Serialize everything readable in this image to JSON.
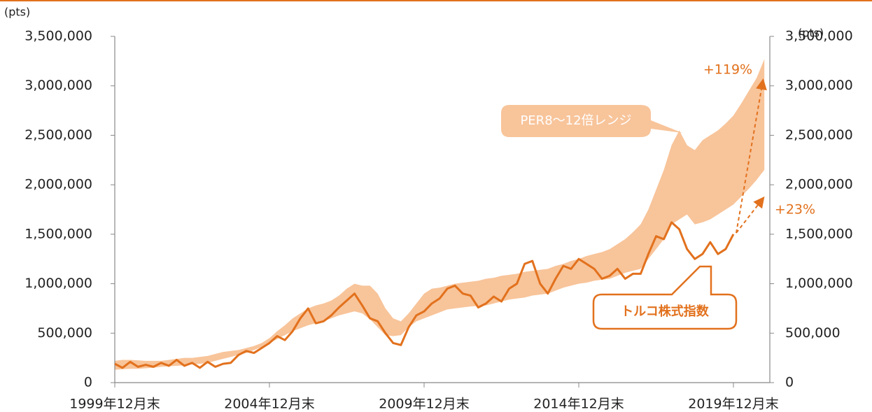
{
  "chart_data": {
    "type": "line",
    "categories": [
      "1999年12月末",
      null,
      null,
      null,
      null,
      null,
      null,
      null,
      null,
      null,
      null,
      null,
      null,
      null,
      null,
      null,
      null,
      null,
      null,
      null,
      "2004年12月末",
      null,
      null,
      null,
      null,
      null,
      null,
      null,
      null,
      null,
      null,
      null,
      null,
      null,
      null,
      null,
      null,
      null,
      null,
      null,
      "2009年12月末",
      null,
      null,
      null,
      null,
      null,
      null,
      null,
      null,
      null,
      null,
      null,
      null,
      null,
      null,
      null,
      null,
      null,
      null,
      null,
      "2014年12月末",
      null,
      null,
      null,
      null,
      null,
      null,
      null,
      null,
      null,
      null,
      null,
      null,
      null,
      null,
      null,
      null,
      null,
      null,
      null,
      "2019年12月末",
      null,
      null,
      null,
      null
    ],
    "series": [
      {
        "name": "PER8～12倍レンジ",
        "color": "#f8c49a",
        "low": [
          130000,
          135000,
          140000,
          140000,
          145000,
          150000,
          160000,
          165000,
          170000,
          175000,
          185000,
          190000,
          200000,
          220000,
          240000,
          260000,
          280000,
          300000,
          330000,
          360000,
          400000,
          440000,
          480000,
          520000,
          550000,
          580000,
          600000,
          620000,
          650000,
          680000,
          700000,
          720000,
          700000,
          640000,
          560000,
          480000,
          470000,
          480000,
          560000,
          620000,
          650000,
          680000,
          710000,
          740000,
          750000,
          760000,
          770000,
          775000,
          780000,
          800000,
          820000,
          840000,
          850000,
          860000,
          880000,
          890000,
          900000,
          930000,
          960000,
          980000,
          1000000,
          1010000,
          1030000,
          1040000,
          1050000,
          1080000,
          1110000,
          1130000,
          1150000,
          1250000,
          1350000,
          1450000,
          1600000,
          1650000,
          1700000,
          1600000,
          1620000,
          1650000,
          1700000,
          1750000,
          1800000,
          1880000,
          1960000,
          2050000,
          2150000
        ],
        "high": [
          220000,
          230000,
          230000,
          225000,
          220000,
          220000,
          220000,
          230000,
          240000,
          250000,
          250000,
          260000,
          270000,
          290000,
          310000,
          320000,
          330000,
          350000,
          370000,
          400000,
          450000,
          520000,
          580000,
          650000,
          700000,
          750000,
          780000,
          800000,
          830000,
          880000,
          950000,
          1000000,
          980000,
          980000,
          900000,
          750000,
          650000,
          620000,
          700000,
          800000,
          900000,
          950000,
          960000,
          980000,
          1000000,
          1010000,
          1020000,
          1030000,
          1050000,
          1060000,
          1080000,
          1090000,
          1100000,
          1120000,
          1130000,
          1140000,
          1150000,
          1180000,
          1200000,
          1230000,
          1250000,
          1280000,
          1300000,
          1320000,
          1350000,
          1400000,
          1450000,
          1520000,
          1600000,
          1750000,
          1950000,
          2150000,
          2400000,
          2550000,
          2400000,
          2350000,
          2450000,
          2500000,
          2550000,
          2620000,
          2700000,
          2820000,
          2950000,
          3080000,
          3270000
        ]
      },
      {
        "name": "トルコ株式指数",
        "color": "#e2711d",
        "values": [
          190000,
          150000,
          210000,
          160000,
          180000,
          160000,
          200000,
          170000,
          230000,
          170000,
          200000,
          150000,
          210000,
          160000,
          190000,
          200000,
          280000,
          320000,
          300000,
          350000,
          400000,
          470000,
          430000,
          520000,
          650000,
          750000,
          600000,
          620000,
          680000,
          760000,
          830000,
          900000,
          780000,
          650000,
          620000,
          500000,
          400000,
          380000,
          560000,
          680000,
          720000,
          800000,
          850000,
          950000,
          980000,
          900000,
          880000,
          760000,
          800000,
          870000,
          820000,
          950000,
          1000000,
          1200000,
          1230000,
          1000000,
          900000,
          1050000,
          1180000,
          1150000,
          1250000,
          1200000,
          1150000,
          1050000,
          1080000,
          1150000,
          1050000,
          1100000,
          1100000,
          1300000,
          1480000,
          1450000,
          1620000,
          1550000,
          1350000,
          1250000,
          1300000,
          1420000,
          1300000,
          1350000,
          1500000,
          null,
          null,
          null,
          null
        ]
      }
    ],
    "ylim": [
      0,
      3500000
    ],
    "yticks": [
      0,
      {
        "value": 500000,
        "label": "500,000"
      },
      {
        "value": 1000000,
        "label": "1,000,000"
      },
      {
        "value": 1500000,
        "label": "1,500,000"
      },
      {
        "value": 2000000,
        "label": "2,000,000"
      },
      {
        "value": 2500000,
        "label": "2,500,000"
      },
      {
        "value": 3000000,
        "label": "3,000,000"
      },
      {
        "value": 3500000,
        "label": "3,500,000"
      }
    ],
    "y2lim": [
      0,
      3500000
    ],
    "y2ticks": [
      0,
      {
        "value": 500000,
        "label": "500,000"
      },
      {
        "value": 1000000,
        "label": "1,000,000"
      },
      {
        "value": 1500000,
        "label": "1,500,000"
      },
      {
        "value": 2000000,
        "label": "2,000,000"
      },
      {
        "value": 2500000,
        "label": "2,500,000"
      },
      {
        "value": 3000000,
        "label": "3,000,000"
      },
      {
        "value": 3500000,
        "label": "3,500,000"
      }
    ],
    "y_unit": "(pts)",
    "y2_unit": "(pts)",
    "annotations": [
      "+119%",
      "+23%"
    ],
    "grid": false
  }
}
